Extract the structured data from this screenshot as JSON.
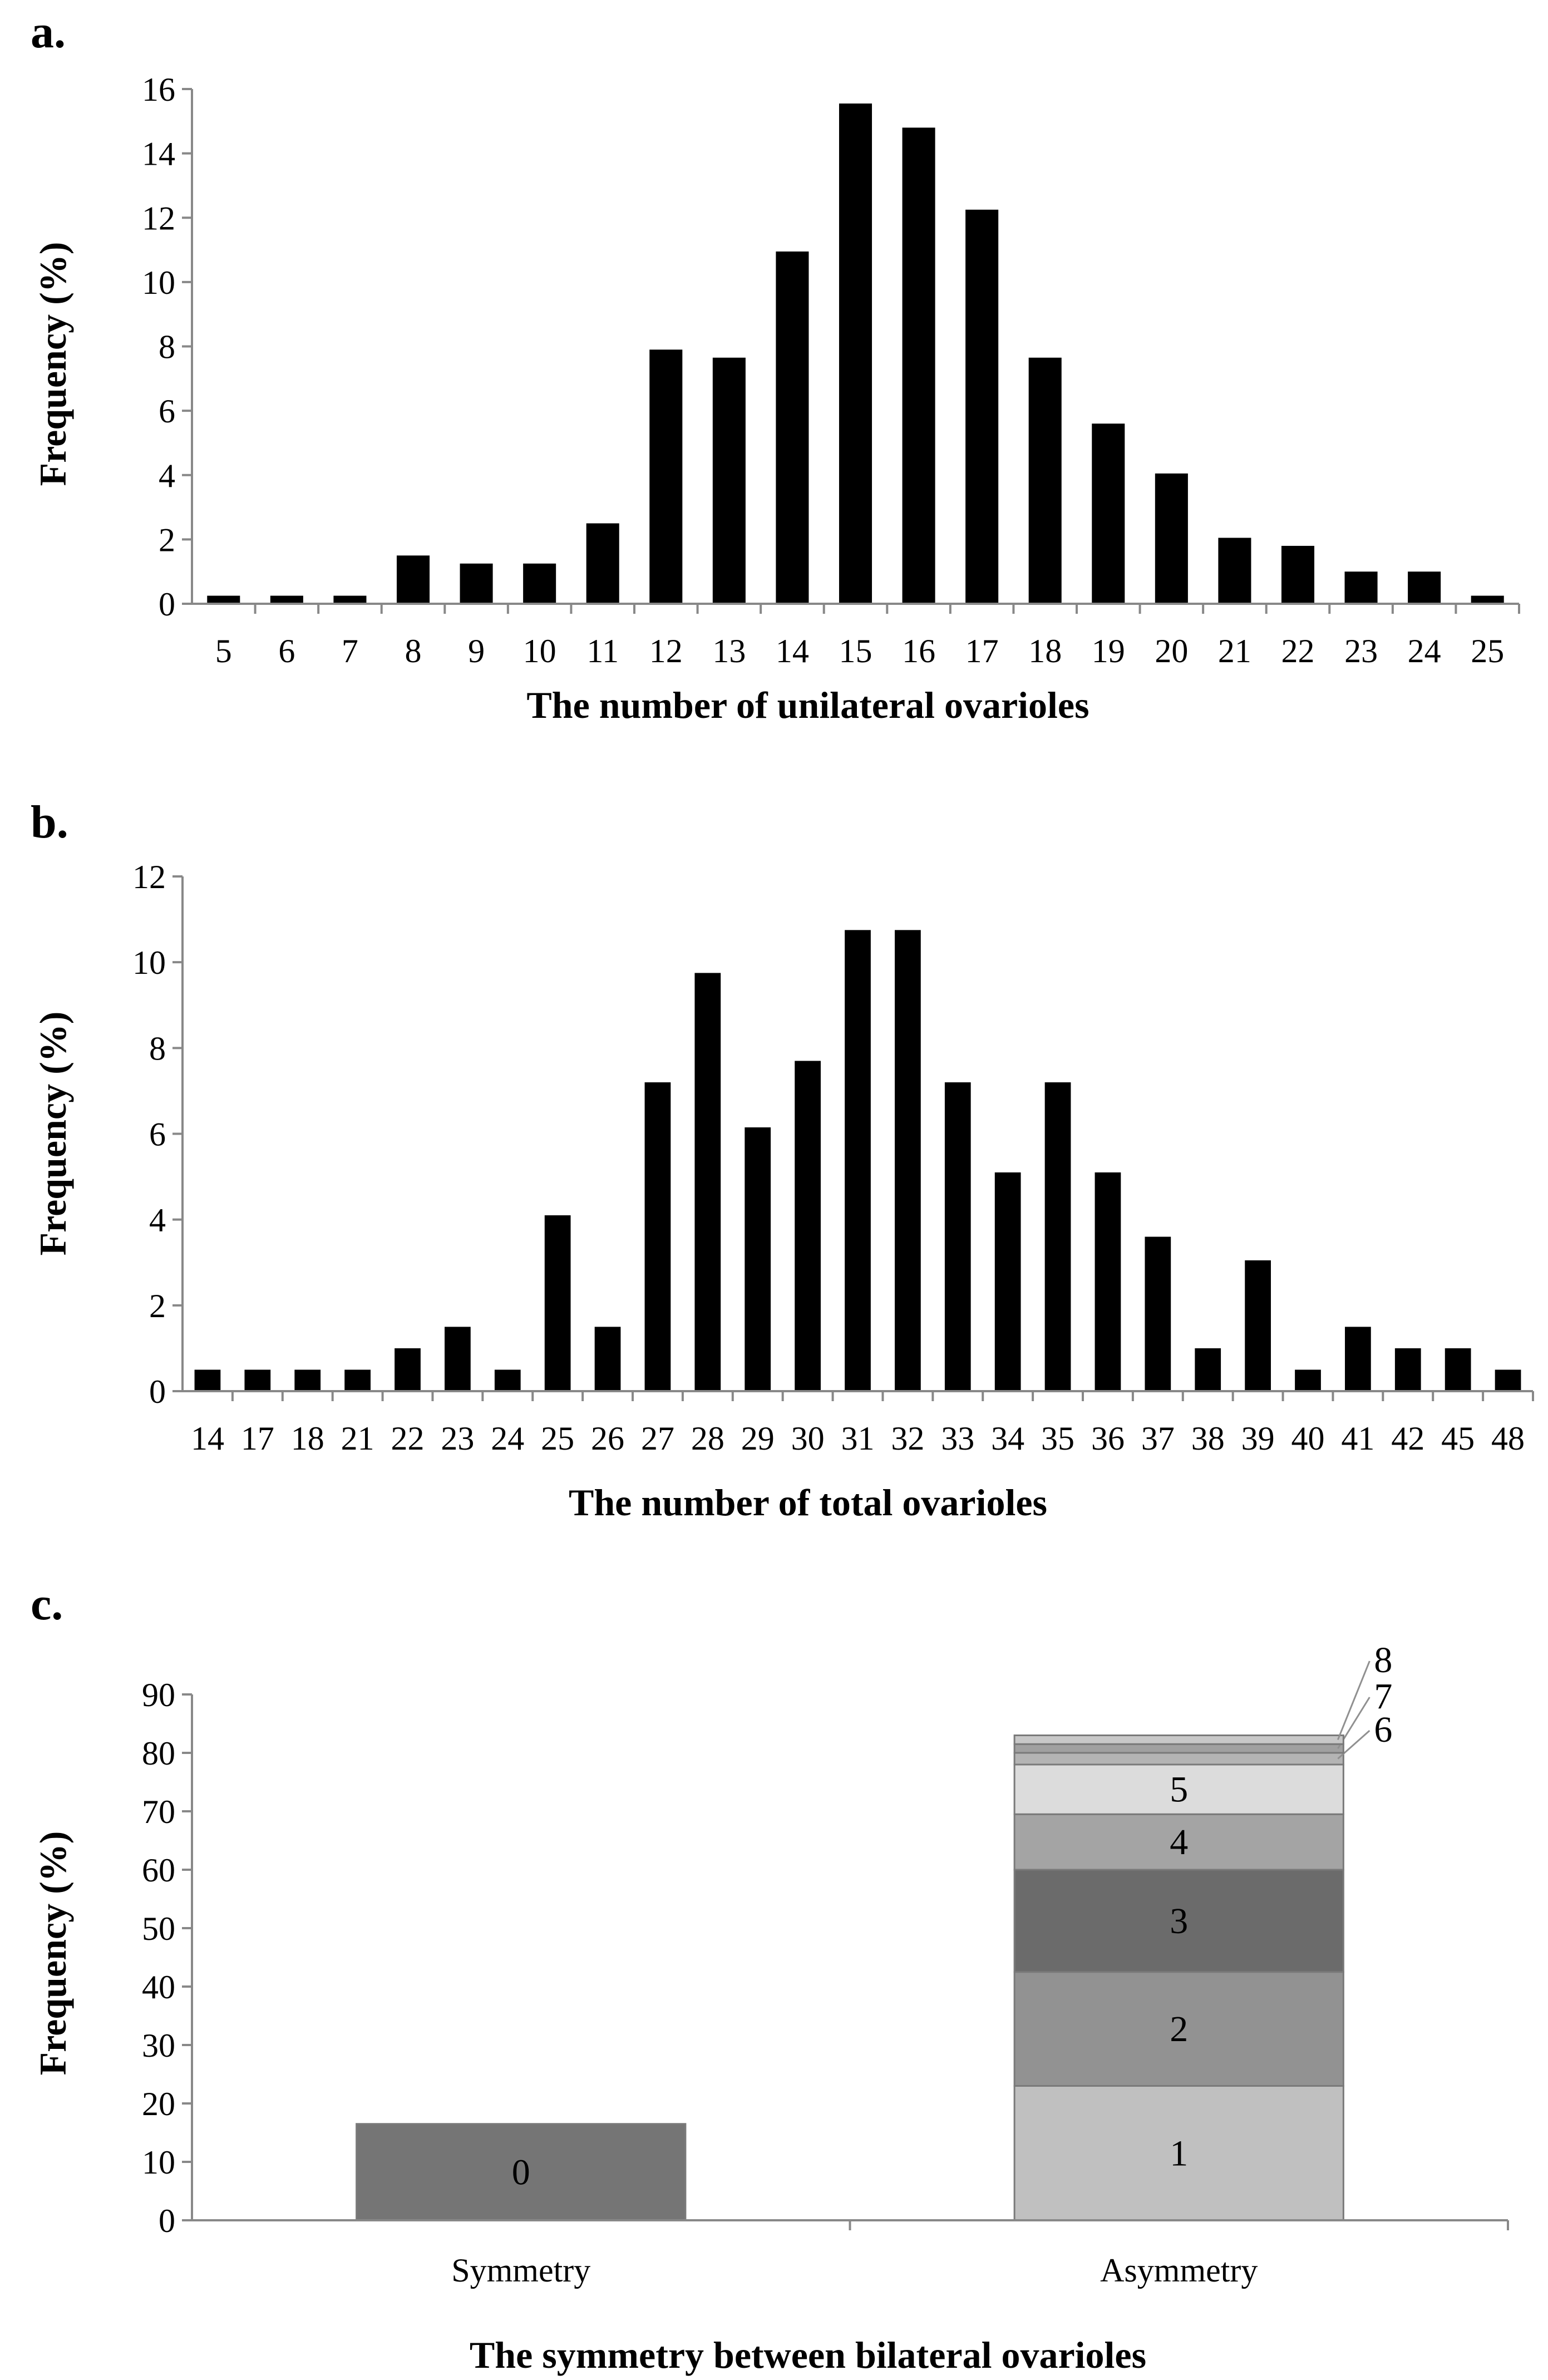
{
  "figure": {
    "panel_labels": [
      "a.",
      "b.",
      "c."
    ]
  },
  "chart_data": [
    {
      "type": "bar",
      "panel": "a.",
      "title": "",
      "xlabel": "The number of unilateral ovarioles",
      "ylabel": "Frequency (%)",
      "ylim": [
        0,
        16
      ],
      "yticks": [
        0,
        2,
        4,
        6,
        8,
        10,
        12,
        14,
        16
      ],
      "categories": [
        "5",
        "6",
        "7",
        "8",
        "9",
        "10",
        "11",
        "12",
        "13",
        "14",
        "15",
        "16",
        "17",
        "18",
        "19",
        "20",
        "21",
        "22",
        "23",
        "24",
        "25"
      ],
      "values": [
        0.25,
        0.25,
        0.25,
        1.5,
        1.25,
        1.25,
        2.5,
        7.9,
        7.65,
        10.95,
        15.55,
        14.8,
        12.25,
        7.65,
        5.6,
        4.05,
        2.05,
        1.8,
        1.0,
        1.0,
        0.25
      ],
      "color": "#000000",
      "grid": false
    },
    {
      "type": "bar",
      "panel": "b.",
      "title": "",
      "xlabel": "The number of total ovarioles",
      "ylabel": "Frequency (%)",
      "ylim": [
        0,
        12
      ],
      "yticks": [
        0,
        2,
        4,
        6,
        8,
        10,
        12
      ],
      "categories": [
        "14",
        "17",
        "18",
        "21",
        "22",
        "23",
        "24",
        "25",
        "26",
        "27",
        "28",
        "29",
        "30",
        "31",
        "32",
        "33",
        "34",
        "35",
        "36",
        "37",
        "38",
        "39",
        "40",
        "41",
        "42",
        "45",
        "48"
      ],
      "values": [
        0.5,
        0.5,
        0.5,
        0.5,
        1.0,
        1.5,
        0.5,
        4.1,
        1.5,
        7.2,
        9.75,
        6.15,
        7.7,
        10.75,
        10.75,
        7.2,
        5.1,
        7.2,
        5.1,
        3.6,
        1.0,
        3.05,
        0.5,
        1.5,
        1.0,
        1.0,
        0.5
      ],
      "color": "#000000",
      "grid": false
    },
    {
      "type": "stacked_bar",
      "panel": "c.",
      "title": "",
      "xlabel": "The symmetry between bilateral ovarioles",
      "ylabel": "Frequency (%)",
      "ylim": [
        0,
        90
      ],
      "yticks": [
        0,
        10,
        20,
        30,
        40,
        50,
        60,
        70,
        80,
        90
      ],
      "categories": [
        "Symmetry",
        "Asymmetry"
      ],
      "stacks": [
        {
          "category": "Symmetry",
          "segments": [
            {
              "label": "0",
              "value": 16.5,
              "color": "#757575"
            }
          ]
        },
        {
          "category": "Asymmetry",
          "segments": [
            {
              "label": "1",
              "value": 23.0,
              "color": "#c0c0c0"
            },
            {
              "label": "2",
              "value": 19.5,
              "color": "#929292"
            },
            {
              "label": "3",
              "value": 17.5,
              "color": "#6b6b6b"
            },
            {
              "label": "4",
              "value": 9.5,
              "color": "#a4a4a4"
            },
            {
              "label": "5",
              "value": 8.5,
              "color": "#dcdcdc"
            },
            {
              "label": "6",
              "value": 2.0,
              "color": "#b4b4b4"
            },
            {
              "label": "7",
              "value": 1.5,
              "color": "#a0a0a0"
            },
            {
              "label": "8",
              "value": 1.5,
              "color": "#c8c8c8"
            }
          ]
        }
      ],
      "grid": false
    }
  ]
}
